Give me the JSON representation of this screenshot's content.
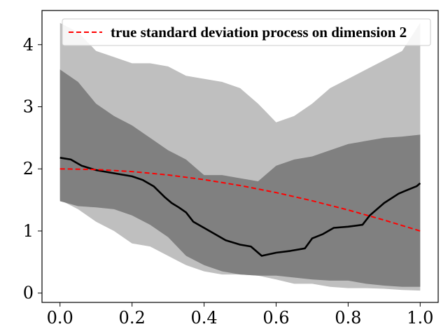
{
  "chart_data": {
    "type": "area",
    "xlim": [
      -0.05,
      1.05
    ],
    "ylim": [
      -0.15,
      4.55
    ],
    "x_ticks": [
      0.0,
      0.2,
      0.4,
      0.6,
      0.8,
      1.0
    ],
    "x_tick_labels": [
      "0.0",
      "0.2",
      "0.4",
      "0.6",
      "0.8",
      "1.0"
    ],
    "y_ticks": [
      0,
      1,
      2,
      3,
      4
    ],
    "y_tick_labels": [
      "0",
      "1",
      "2",
      "3",
      "4"
    ],
    "grid": false,
    "legend_position": "top-right",
    "legend_entries": [
      {
        "label": "true standard deviation process on dimension 2",
        "color": "#ff0000",
        "style": "dashed"
      }
    ],
    "colors": {
      "outer_band": "#bfbfbf",
      "inner_band": "#808080",
      "estimate_line": "#000000",
      "true_line": "#ff0000"
    },
    "series": [
      {
        "role": "outer_band",
        "x": [
          0.0,
          0.05,
          0.1,
          0.15,
          0.2,
          0.25,
          0.3,
          0.35,
          0.4,
          0.45,
          0.5,
          0.55,
          0.6,
          0.65,
          0.7,
          0.75,
          0.8,
          0.85,
          0.9,
          0.95,
          1.0
        ],
        "lower": [
          1.5,
          1.35,
          1.15,
          1.0,
          0.8,
          0.75,
          0.6,
          0.45,
          0.35,
          0.3,
          0.3,
          0.28,
          0.22,
          0.15,
          0.15,
          0.1,
          0.08,
          0.08,
          0.07,
          0.05,
          0.04
        ],
        "upper": [
          4.35,
          4.2,
          3.9,
          3.8,
          3.7,
          3.7,
          3.65,
          3.5,
          3.45,
          3.4,
          3.3,
          3.05,
          2.75,
          2.85,
          3.05,
          3.3,
          3.45,
          3.6,
          3.75,
          3.9,
          4.35
        ]
      },
      {
        "role": "inner_band",
        "x": [
          0.0,
          0.05,
          0.1,
          0.15,
          0.2,
          0.25,
          0.3,
          0.35,
          0.4,
          0.45,
          0.5,
          0.55,
          0.6,
          0.65,
          0.7,
          0.75,
          0.8,
          0.85,
          0.9,
          0.95,
          1.0
        ],
        "lower": [
          1.48,
          1.4,
          1.38,
          1.35,
          1.25,
          1.1,
          0.9,
          0.6,
          0.45,
          0.35,
          0.3,
          0.28,
          0.28,
          0.25,
          0.22,
          0.2,
          0.2,
          0.15,
          0.12,
          0.1,
          0.1
        ],
        "upper": [
          3.6,
          3.4,
          3.05,
          2.85,
          2.7,
          2.5,
          2.3,
          2.15,
          1.9,
          1.9,
          1.85,
          1.8,
          2.05,
          2.15,
          2.2,
          2.3,
          2.4,
          2.45,
          2.5,
          2.52,
          2.55
        ]
      },
      {
        "role": "estimate",
        "x": [
          0.0,
          0.03,
          0.06,
          0.1,
          0.15,
          0.2,
          0.23,
          0.26,
          0.29,
          0.31,
          0.33,
          0.35,
          0.37,
          0.4,
          0.43,
          0.46,
          0.5,
          0.53,
          0.56,
          0.6,
          0.64,
          0.68,
          0.7,
          0.73,
          0.76,
          0.8,
          0.84,
          0.86,
          0.9,
          0.94,
          0.96,
          0.99,
          1.0
        ],
        "y": [
          2.18,
          2.15,
          2.05,
          1.98,
          1.93,
          1.88,
          1.82,
          1.72,
          1.55,
          1.45,
          1.38,
          1.3,
          1.15,
          1.05,
          0.95,
          0.85,
          0.78,
          0.75,
          0.6,
          0.65,
          0.68,
          0.72,
          0.88,
          0.95,
          1.05,
          1.07,
          1.1,
          1.25,
          1.45,
          1.6,
          1.65,
          1.72,
          1.77
        ]
      },
      {
        "name": "true standard deviation process on dimension 2",
        "role": "true",
        "function": "2*cos(pi*x/3)",
        "x": [
          0.0,
          0.1,
          0.2,
          0.3,
          0.4,
          0.5,
          0.6,
          0.7,
          0.8,
          0.9,
          1.0
        ],
        "y": [
          2.0,
          1.989,
          1.956,
          1.902,
          1.827,
          1.732,
          1.618,
          1.486,
          1.338,
          1.176,
          1.0
        ]
      }
    ]
  }
}
